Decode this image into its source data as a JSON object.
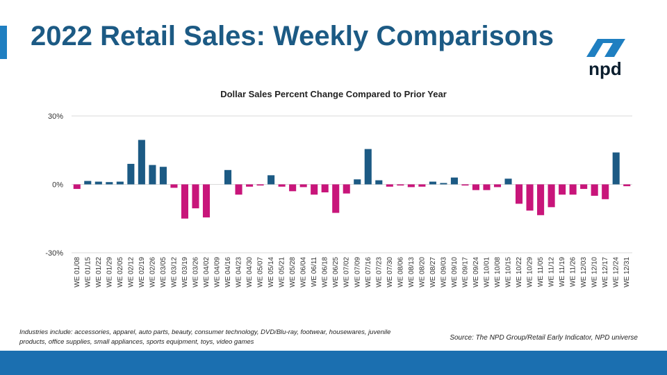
{
  "title": "2022 Retail Sales: Weekly Comparisons",
  "logo_text": "npd",
  "footnote": "Industries include: accessories, apparel, auto parts, beauty, consumer technology, DVD/Blu-ray, footwear, housewares, juvenile products, office supplies, small appliances, sports equipment, toys, video games",
  "source": "Source: The NPD Group/Retail Early Indicator, NPD universe",
  "colors": {
    "positive": "#1c5a84",
    "negative": "#c8157a",
    "accent": "#1f7fc1",
    "footer": "#1b6fb0"
  },
  "chart_data": {
    "type": "bar",
    "title": "Dollar Sales Percent Change Compared to Prior Year",
    "xlabel": "",
    "ylabel": "",
    "ylim": [
      -30,
      30
    ],
    "yticks": [
      "30%",
      "0%",
      "-30%"
    ],
    "ytick_values": [
      30,
      0,
      -30
    ],
    "grid": true,
    "categories": [
      "WE 01/08",
      "WE 01/15",
      "WE 01/22",
      "WE 01/29",
      "WE 02/05",
      "WE 02/12",
      "WE 02/19",
      "WE 02/26",
      "WE 03/05",
      "WE 03/12",
      "WE 03/19",
      "WE 03/26",
      "WE 04/02",
      "WE 04/09",
      "WE 04/16",
      "WE 04/23",
      "WE 04/30",
      "WE 05/07",
      "WE 05/14",
      "WE 05/21",
      "WE 05/28",
      "WE 06/04",
      "WE 06/11",
      "WE 06/18",
      "WE 06/25",
      "WE 07/02",
      "WE 07/09",
      "WE 07/16",
      "WE 07/23",
      "WE 07/30",
      "WE 08/06",
      "WE 08/13",
      "WE 08/20",
      "WE 08/27",
      "WE 09/03",
      "WE 09/10",
      "WE 09/17",
      "WE 09/24",
      "WE 10/01",
      "WE 10/08",
      "WE 10/15",
      "WE 10/22",
      "WE 10/29",
      "WE 11/05",
      "WE 11/12",
      "WE 11/19",
      "WE 11/26",
      "WE 12/03",
      "WE 12/10",
      "WE 12/17",
      "WE 12/24",
      "WE 12/31"
    ],
    "values": [
      -2,
      1.5,
      1.2,
      1,
      1.2,
      9,
      19.5,
      8.5,
      7.7,
      -1.5,
      -15,
      -10.5,
      -14.5,
      0,
      6.3,
      -4.5,
      -1,
      -0.5,
      4,
      -1,
      -3,
      -1.2,
      -4.5,
      -3.5,
      -12.5,
      -4,
      2.2,
      15.5,
      1.8,
      -1,
      -0.5,
      -1.2,
      -1,
      1.2,
      0.6,
      3,
      -0.5,
      -2.5,
      -2.5,
      -1.2,
      2.5,
      -8.5,
      -11.5,
      -13.5,
      -10,
      -4.5,
      -4.5,
      -2,
      -5,
      -6.5,
      14,
      -0.8
    ]
  }
}
